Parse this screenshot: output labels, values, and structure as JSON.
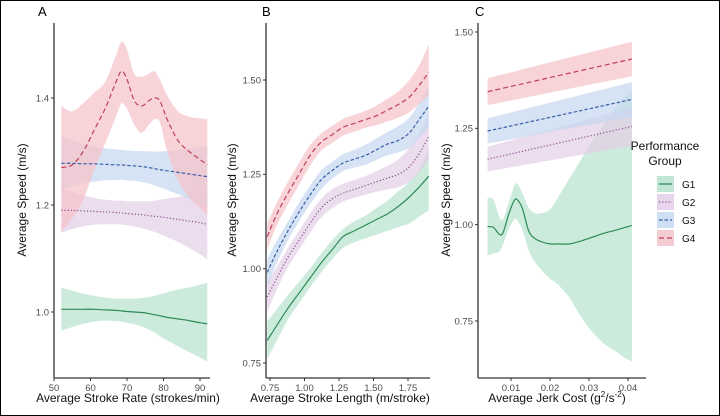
{
  "legend": {
    "title_line1": "Performance",
    "title_line2": "Group",
    "placement": "right",
    "items": [
      {
        "key": "G1",
        "label": "G1",
        "line": "#2e8b57",
        "fill": "#b9e3cf",
        "dash": "solid"
      },
      {
        "key": "G2",
        "label": "G2",
        "line": "#8e4f8e",
        "fill": "#e3cfe8",
        "dash": "dotted"
      },
      {
        "key": "G3",
        "label": "G3",
        "line": "#3a5fa8",
        "fill": "#c6d8f1",
        "dash": "dashed"
      },
      {
        "key": "G4",
        "label": "G4",
        "line": "#c0405a",
        "fill": "#f5c3cb",
        "dash": "longdash"
      }
    ]
  },
  "chart_data": [
    {
      "panel": "A",
      "type": "line",
      "title": "A",
      "xlabel": "Average Stroke Rate (strokes/min)",
      "ylabel": "Average Speed (m/s)",
      "xlim": [
        50,
        94
      ],
      "ylim": [
        0.86,
        1.52
      ],
      "xticks": [
        50,
        60,
        70,
        80,
        90
      ],
      "xtick_labels": [
        "50",
        "60",
        "70",
        "80",
        "90"
      ],
      "yticks": [
        1.0,
        1.2,
        1.4
      ],
      "ytick_labels": [
        "1.0",
        "1.2",
        "1.4"
      ],
      "grid": false,
      "x": [
        52,
        55,
        58,
        61,
        64,
        67,
        68.5,
        70,
        72,
        74,
        76,
        77.5,
        79,
        81,
        84,
        87,
        90,
        92
      ],
      "series": [
        {
          "name": "G1",
          "mean": [
            1.005,
            1.005,
            1.005,
            1.005,
            1.004,
            1.003,
            1.002,
            1.001,
            1.0,
            0.999,
            0.997,
            0.995,
            0.993,
            0.99,
            0.987,
            0.984,
            0.98,
            0.978
          ],
          "lower": [
            0.965,
            0.972,
            0.978,
            0.982,
            0.984,
            0.983,
            0.982,
            0.98,
            0.977,
            0.973,
            0.967,
            0.962,
            0.955,
            0.947,
            0.936,
            0.925,
            0.915,
            0.907
          ],
          "upper": [
            1.045,
            1.04,
            1.034,
            1.03,
            1.027,
            1.025,
            1.025,
            1.025,
            1.025,
            1.026,
            1.028,
            1.03,
            1.033,
            1.037,
            1.042,
            1.046,
            1.051,
            1.055
          ]
        },
        {
          "name": "G2",
          "mean": [
            1.19,
            1.19,
            1.189,
            1.188,
            1.187,
            1.186,
            1.185,
            1.184,
            1.183,
            1.182,
            1.18,
            1.179,
            1.178,
            1.176,
            1.173,
            1.17,
            1.167,
            1.164
          ],
          "lower": [
            1.148,
            1.155,
            1.16,
            1.163,
            1.164,
            1.164,
            1.163,
            1.162,
            1.16,
            1.157,
            1.153,
            1.15,
            1.146,
            1.14,
            1.131,
            1.12,
            1.108,
            1.098
          ],
          "upper": [
            1.232,
            1.225,
            1.218,
            1.213,
            1.21,
            1.208,
            1.208,
            1.207,
            1.207,
            1.207,
            1.207,
            1.208,
            1.21,
            1.212,
            1.215,
            1.22,
            1.226,
            1.23
          ]
        },
        {
          "name": "G3",
          "mean": [
            1.278,
            1.278,
            1.277,
            1.277,
            1.276,
            1.275,
            1.275,
            1.274,
            1.273,
            1.272,
            1.27,
            1.268,
            1.266,
            1.264,
            1.261,
            1.258,
            1.255,
            1.253
          ],
          "lower": [
            1.228,
            1.235,
            1.24,
            1.244,
            1.246,
            1.247,
            1.247,
            1.246,
            1.245,
            1.243,
            1.24,
            1.237,
            1.233,
            1.228,
            1.22,
            1.212,
            1.202,
            1.195
          ],
          "upper": [
            1.328,
            1.321,
            1.314,
            1.31,
            1.306,
            1.304,
            1.303,
            1.302,
            1.301,
            1.301,
            1.3,
            1.3,
            1.3,
            1.301,
            1.303,
            1.306,
            1.309,
            1.312
          ]
        },
        {
          "name": "G4",
          "mean": [
            1.27,
            1.275,
            1.3,
            1.34,
            1.38,
            1.43,
            1.45,
            1.435,
            1.395,
            1.385,
            1.395,
            1.4,
            1.395,
            1.36,
            1.32,
            1.3,
            1.285,
            1.275
          ],
          "lower": [
            1.15,
            1.175,
            1.21,
            1.265,
            1.315,
            1.365,
            1.39,
            1.38,
            1.35,
            1.335,
            1.35,
            1.36,
            1.355,
            1.3,
            1.245,
            1.215,
            1.195,
            1.18
          ],
          "upper": [
            1.385,
            1.375,
            1.39,
            1.41,
            1.43,
            1.48,
            1.505,
            1.49,
            1.445,
            1.44,
            1.445,
            1.45,
            1.435,
            1.405,
            1.375,
            1.365,
            1.362,
            1.36
          ]
        }
      ]
    },
    {
      "panel": "B",
      "type": "line",
      "title": "B",
      "xlabel": "Average Stroke Length (m/stroke)",
      "ylabel": "Average Speed (m/s)",
      "xlim": [
        0.7,
        1.96
      ],
      "ylim": [
        0.7,
        1.64
      ],
      "xticks": [
        0.75,
        1.0,
        1.25,
        1.5,
        1.75
      ],
      "xtick_labels": [
        "0.75",
        "1.00",
        "1.25",
        "1.50",
        "1.75"
      ],
      "yticks": [
        0.75,
        1.0,
        1.25,
        1.5
      ],
      "ytick_labels": [
        "0.75",
        "1.00",
        "1.25",
        "1.50"
      ],
      "grid": false,
      "x": [
        0.73,
        0.8,
        0.88,
        0.96,
        1.04,
        1.12,
        1.2,
        1.28,
        1.36,
        1.44,
        1.52,
        1.6,
        1.68,
        1.76,
        1.84,
        1.9
      ],
      "series": [
        {
          "name": "G1",
          "mean": [
            0.81,
            0.85,
            0.895,
            0.935,
            0.975,
            1.015,
            1.05,
            1.085,
            1.1,
            1.115,
            1.13,
            1.145,
            1.165,
            1.19,
            1.22,
            1.245
          ],
          "lower": [
            0.76,
            0.81,
            0.865,
            0.908,
            0.95,
            0.99,
            1.025,
            1.055,
            1.07,
            1.08,
            1.09,
            1.1,
            1.11,
            1.12,
            1.14,
            1.155
          ],
          "upper": [
            0.86,
            0.893,
            0.93,
            0.965,
            1.0,
            1.04,
            1.075,
            1.105,
            1.125,
            1.14,
            1.16,
            1.18,
            1.205,
            1.23,
            1.27,
            1.32
          ]
        },
        {
          "name": "G2",
          "mean": [
            0.925,
            0.975,
            1.03,
            1.075,
            1.12,
            1.16,
            1.185,
            1.2,
            1.21,
            1.22,
            1.23,
            1.24,
            1.25,
            1.27,
            1.31,
            1.35
          ],
          "lower": [
            0.885,
            0.945,
            1.005,
            1.05,
            1.095,
            1.135,
            1.16,
            1.178,
            1.188,
            1.196,
            1.204,
            1.21,
            1.216,
            1.23,
            1.26,
            1.29
          ],
          "upper": [
            0.965,
            1.005,
            1.055,
            1.1,
            1.145,
            1.185,
            1.21,
            1.225,
            1.235,
            1.245,
            1.258,
            1.272,
            1.29,
            1.32,
            1.365,
            1.41
          ]
        },
        {
          "name": "G3",
          "mean": [
            0.99,
            1.045,
            1.1,
            1.15,
            1.195,
            1.235,
            1.26,
            1.28,
            1.29,
            1.3,
            1.315,
            1.33,
            1.34,
            1.36,
            1.4,
            1.43
          ],
          "lower": [
            0.955,
            1.015,
            1.075,
            1.125,
            1.17,
            1.21,
            1.238,
            1.258,
            1.268,
            1.275,
            1.288,
            1.3,
            1.308,
            1.32,
            1.35,
            1.375
          ],
          "upper": [
            1.025,
            1.075,
            1.125,
            1.175,
            1.22,
            1.26,
            1.283,
            1.303,
            1.315,
            1.328,
            1.345,
            1.362,
            1.378,
            1.4,
            1.445,
            1.485
          ]
        },
        {
          "name": "G4",
          "mean": [
            1.085,
            1.145,
            1.2,
            1.25,
            1.3,
            1.335,
            1.355,
            1.375,
            1.385,
            1.395,
            1.405,
            1.42,
            1.435,
            1.455,
            1.49,
            1.52
          ],
          "lower": [
            1.05,
            1.115,
            1.17,
            1.222,
            1.273,
            1.312,
            1.333,
            1.353,
            1.363,
            1.373,
            1.38,
            1.39,
            1.4,
            1.415,
            1.44,
            1.46
          ],
          "upper": [
            1.12,
            1.175,
            1.23,
            1.28,
            1.327,
            1.358,
            1.378,
            1.397,
            1.408,
            1.418,
            1.432,
            1.45,
            1.47,
            1.5,
            1.545,
            1.595
          ]
        }
      ]
    },
    {
      "panel": "C",
      "type": "line",
      "title": "C",
      "xlabel": "Average Jerk Cost (g²/s⁻²)",
      "xlabel_base": "Average Jerk Cost (g",
      "xlabel_sup1": "2",
      "xlabel_mid": "/s",
      "xlabel_sup2": "-2",
      "xlabel_end": ")",
      "ylabel": "Average Speed (m/s)",
      "xlim": [
        0.0015,
        0.0425
      ],
      "ylim": [
        0.6,
        1.52
      ],
      "xticks": [
        0.01,
        0.02,
        0.03,
        0.04
      ],
      "xtick_labels": [
        "0.01",
        "0.02",
        "0.03",
        "0.04"
      ],
      "yticks": [
        0.75,
        1.0,
        1.25,
        1.5
      ],
      "ytick_labels": [
        "0.75",
        "1.00",
        "1.25",
        "1.50"
      ],
      "grid": false,
      "x_linear": [
        0.004,
        0.041
      ],
      "series_linear": [
        {
          "name": "G2",
          "mean": [
            1.17,
            1.255
          ],
          "lower": [
            1.138,
            1.205
          ],
          "upper": [
            1.202,
            1.305
          ]
        },
        {
          "name": "G3",
          "mean": [
            1.243,
            1.325
          ],
          "lower": [
            1.21,
            1.28
          ],
          "upper": [
            1.276,
            1.37
          ]
        },
        {
          "name": "G4",
          "mean": [
            1.345,
            1.43
          ],
          "lower": [
            1.31,
            1.385
          ],
          "upper": [
            1.38,
            1.475
          ]
        }
      ],
      "x": [
        0.004,
        0.0055,
        0.007,
        0.008,
        0.0095,
        0.011,
        0.012,
        0.013,
        0.0145,
        0.016,
        0.018,
        0.02,
        0.022,
        0.025,
        0.028,
        0.031,
        0.034,
        0.037,
        0.039,
        0.041
      ],
      "series": [
        {
          "name": "G1",
          "mean": [
            0.995,
            0.993,
            0.975,
            0.98,
            1.03,
            1.065,
            1.06,
            1.04,
            0.985,
            0.965,
            0.955,
            0.95,
            0.95,
            0.95,
            0.958,
            0.968,
            0.978,
            0.986,
            0.992,
            0.998
          ],
          "lower": [
            0.92,
            0.925,
            0.93,
            0.95,
            0.99,
            1.015,
            1.005,
            0.985,
            0.935,
            0.905,
            0.88,
            0.86,
            0.845,
            0.81,
            0.76,
            0.72,
            0.69,
            0.67,
            0.655,
            0.645
          ],
          "upper": [
            1.07,
            1.065,
            1.02,
            1.015,
            1.06,
            1.105,
            1.1,
            1.08,
            1.045,
            1.03,
            1.03,
            1.04,
            1.07,
            1.12,
            1.17,
            1.22,
            1.265,
            1.305,
            1.33,
            1.35
          ]
        }
      ]
    }
  ]
}
